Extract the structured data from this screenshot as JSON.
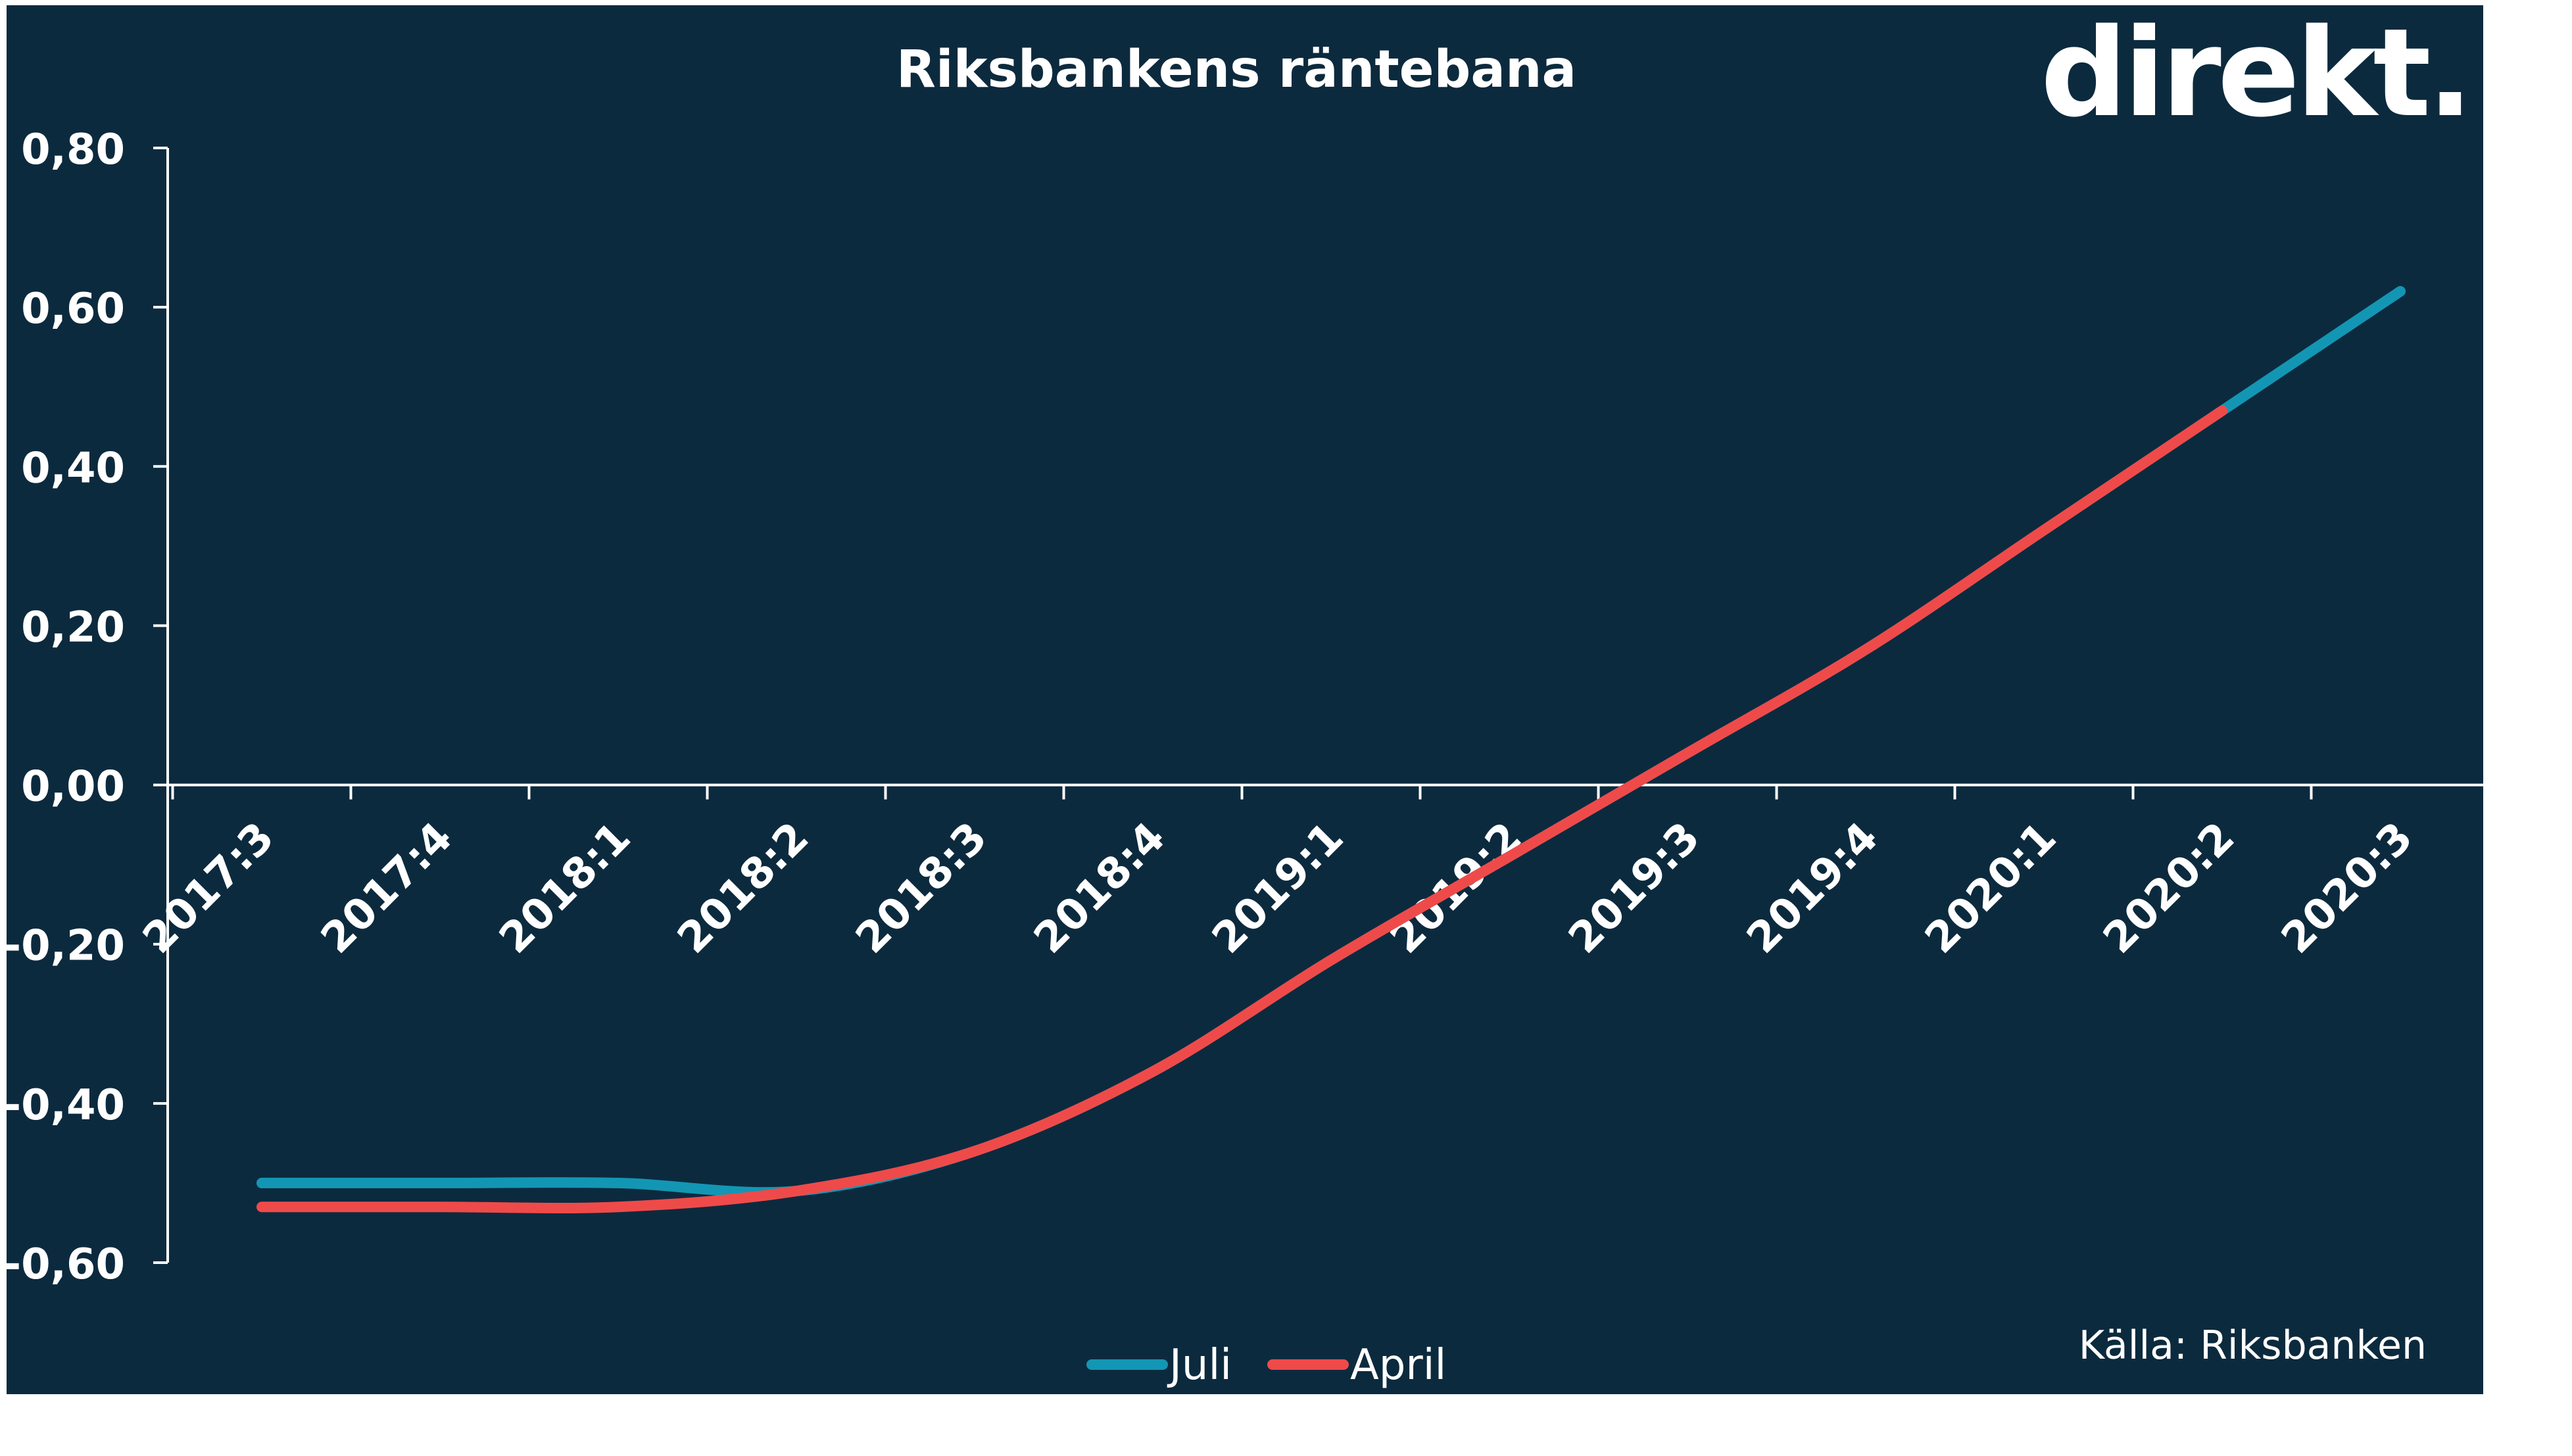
{
  "brand": "direkt.",
  "source": "Källa:  Riksbanken",
  "colors": {
    "background": "#0c2a3e",
    "juli": "#1396b4",
    "april": "#ef4a4a",
    "text": "#ffffff"
  },
  "chart_data": {
    "type": "line",
    "title": "Riksbankens räntebana",
    "categories": [
      "2017:3",
      "2017:4",
      "2018:1",
      "2018:2",
      "2018:3",
      "2018:4",
      "2019:1",
      "2019:2",
      "2019:3",
      "2019:4",
      "2020:1",
      "2020:2",
      "2020:3"
    ],
    "series": [
      {
        "name": "Juli",
        "values": [
          -0.5,
          -0.5,
          -0.5,
          -0.51,
          -0.46,
          -0.36,
          -0.22,
          -0.09,
          0.04,
          0.17,
          0.32,
          0.47,
          0.62
        ]
      },
      {
        "name": "April",
        "values": [
          -0.53,
          -0.53,
          -0.53,
          -0.51,
          -0.46,
          -0.36,
          -0.22,
          -0.09,
          0.04,
          0.17,
          0.32,
          0.47,
          null
        ]
      }
    ],
    "ylim": [
      -0.6,
      0.8
    ],
    "yticks": [
      0.8,
      0.6,
      0.4,
      0.2,
      0.0,
      -0.2,
      -0.4,
      -0.6
    ],
    "ytick_labels": [
      "0,80",
      "0,60",
      "0,40",
      "0,20",
      "0,00",
      "-0,20",
      "-0,40",
      "-0,60"
    ],
    "legend_position": "bottom-center",
    "grid": false
  }
}
